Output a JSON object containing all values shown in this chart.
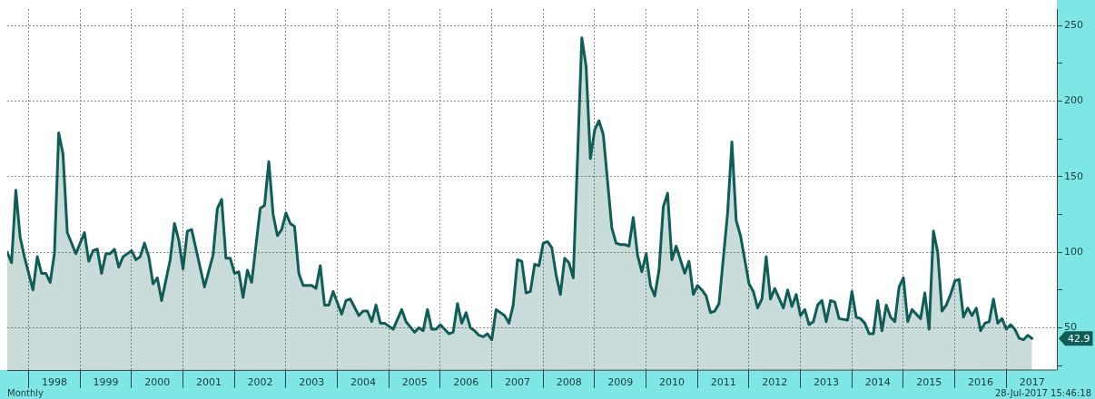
{
  "chart_data": {
    "type": "area",
    "xlim": [
      "1997-08-01",
      "2017-12-25"
    ],
    "ylim": [
      22,
      261
    ],
    "xticks": [
      {
        "value": "1998-01-01",
        "label": null
      },
      {
        "value": "1998-07-01",
        "label": "1998"
      },
      {
        "value": "1999-01-01",
        "label": null
      },
      {
        "value": "1999-07-01",
        "label": "1999"
      },
      {
        "value": "2000-01-01",
        "label": null
      },
      {
        "value": "2000-07-01",
        "label": "2000"
      },
      {
        "value": "2001-01-01",
        "label": null
      },
      {
        "value": "2001-07-01",
        "label": "2001"
      },
      {
        "value": "2002-01-01",
        "label": null
      },
      {
        "value": "2002-07-01",
        "label": "2002"
      },
      {
        "value": "2003-01-01",
        "label": null
      },
      {
        "value": "2003-07-01",
        "label": "2003"
      },
      {
        "value": "2004-01-01",
        "label": null
      },
      {
        "value": "2004-07-01",
        "label": "2004"
      },
      {
        "value": "2005-01-01",
        "label": null
      },
      {
        "value": "2005-07-01",
        "label": "2005"
      },
      {
        "value": "2006-01-01",
        "label": null
      },
      {
        "value": "2006-07-01",
        "label": "2006"
      },
      {
        "value": "2007-01-01",
        "label": null
      },
      {
        "value": "2007-07-01",
        "label": "2007"
      },
      {
        "value": "2008-01-01",
        "label": null
      },
      {
        "value": "2008-07-01",
        "label": "2008"
      },
      {
        "value": "2009-01-01",
        "label": null
      },
      {
        "value": "2009-07-01",
        "label": "2009"
      },
      {
        "value": "2010-01-01",
        "label": null
      },
      {
        "value": "2010-07-01",
        "label": "2010"
      },
      {
        "value": "2011-01-01",
        "label": null
      },
      {
        "value": "2011-07-01",
        "label": "2011"
      },
      {
        "value": "2012-01-01",
        "label": null
      },
      {
        "value": "2012-07-01",
        "label": "2012"
      },
      {
        "value": "2013-01-01",
        "label": null
      },
      {
        "value": "2013-07-01",
        "label": "2013"
      },
      {
        "value": "2014-01-01",
        "label": null
      },
      {
        "value": "2014-07-01",
        "label": "2014"
      },
      {
        "value": "2015-01-01",
        "label": null
      },
      {
        "value": "2015-07-01",
        "label": "2015"
      },
      {
        "value": "2016-01-01",
        "label": null
      },
      {
        "value": "2016-07-01",
        "label": "2016"
      },
      {
        "value": "2017-01-01",
        "label": null
      },
      {
        "value": "2017-07-01",
        "label": "2017"
      }
    ],
    "yticks": [
      {
        "value": 25,
        "label": null
      },
      50,
      {
        "value": 75,
        "label": null
      },
      100,
      {
        "value": 125,
        "label": null
      },
      150,
      {
        "value": 175,
        "label": null
      },
      200,
      {
        "value": 225,
        "label": null
      },
      250
    ],
    "grid": true,
    "legend": false,
    "marker": "none",
    "line_style": "solid",
    "series": [
      {
        "color": "#0e5e57",
        "x": [
          "1997-08",
          "1997-09",
          "1997-10",
          "1997-11",
          "1997-12",
          "1998-02",
          "1998-03",
          "1998-04",
          "1998-05",
          "1998-06",
          "1998-07",
          "1998-08",
          "1998-09",
          "1998-10",
          "1998-12",
          "1999-02",
          "1999-03",
          "1999-04",
          "1999-05",
          "1999-06",
          "1999-07",
          "1999-08",
          "1999-09",
          "1999-10",
          "1999-11",
          "2000-01",
          "2000-02",
          "2000-03",
          "2000-04",
          "2000-05",
          "2000-06",
          "2000-07",
          "2000-08",
          "2000-10",
          "2000-11",
          "2000-12",
          "2001-01",
          "2001-02",
          "2001-03",
          "2001-06",
          "2001-08",
          "2001-09",
          "2001-10",
          "2001-11",
          "2001-12",
          "2002-01",
          "2002-02",
          "2002-03",
          "2002-04",
          "2002-05",
          "2002-07",
          "2002-08",
          "2002-09",
          "2002-10",
          "2002-11",
          "2002-12",
          "2003-01",
          "2003-02",
          "2003-03",
          "2003-04",
          "2003-05",
          "2003-07",
          "2003-08",
          "2003-09",
          "2003-10",
          "2003-11",
          "2003-12",
          "2004-02",
          "2004-03",
          "2004-04",
          "2004-06",
          "2004-07",
          "2004-08",
          "2004-09",
          "2004-10",
          "2004-11",
          "2004-12",
          "2005-02",
          "2005-04",
          "2005-05",
          "2005-07",
          "2005-08",
          "2005-09",
          "2005-10",
          "2005-11",
          "2005-12",
          "2006-01",
          "2006-03",
          "2006-04",
          "2006-05",
          "2006-06",
          "2006-07",
          "2006-08",
          "2006-09",
          "2006-10",
          "2006-11",
          "2006-12",
          "2007-01",
          "2007-02",
          "2007-04",
          "2007-05",
          "2007-06",
          "2007-07",
          "2007-08",
          "2007-09",
          "2007-10",
          "2007-11",
          "2007-12",
          "2008-01",
          "2008-02",
          "2008-03",
          "2008-04",
          "2008-05",
          "2008-06",
          "2008-07",
          "2008-08",
          "2008-10",
          "2008-11",
          "2008-12",
          "2009-01",
          "2009-02",
          "2009-03",
          "2009-05",
          "2009-06",
          "2009-07",
          "2009-08",
          "2009-09",
          "2009-10",
          "2009-11",
          "2009-12",
          "2010-01",
          "2010-02",
          "2010-03",
          "2010-04",
          "2010-05",
          "2010-06",
          "2010-07",
          "2010-08",
          "2010-09",
          "2010-10",
          "2010-11",
          "2010-12",
          "2011-01",
          "2011-02",
          "2011-03",
          "2011-04",
          "2011-05",
          "2011-06",
          "2011-08",
          "2011-09",
          "2011-10",
          "2011-11",
          "2012-01",
          "2012-02",
          "2012-03",
          "2012-04",
          "2012-05",
          "2012-06",
          "2012-07",
          "2012-09",
          "2012-10",
          "2012-11",
          "2012-12",
          "2013-01",
          "2013-02",
          "2013-03",
          "2013-04",
          "2013-05",
          "2013-06",
          "2013-07",
          "2013-08",
          "2013-09",
          "2013-10",
          "2013-12",
          "2014-01",
          "2014-02",
          "2014-03",
          "2014-04",
          "2014-05",
          "2014-06",
          "2014-07",
          "2014-08",
          "2014-09",
          "2014-10",
          "2014-11",
          "2014-12",
          "2015-01",
          "2015-02",
          "2015-03",
          "2015-04",
          "2015-05",
          "2015-06",
          "2015-07",
          "2015-08",
          "2015-09",
          "2015-10",
          "2015-11",
          "2015-12",
          "2016-01",
          "2016-02",
          "2016-03",
          "2016-04",
          "2016-05",
          "2016-06",
          "2016-07",
          "2016-08",
          "2016-09",
          "2016-10",
          "2016-11",
          "2016-12",
          "2017-01",
          "2017-02",
          "2017-03",
          "2017-04",
          "2017-05",
          "2017-06",
          "2017-07"
        ],
        "values": [
          100,
          93,
          141,
          110,
          97,
          75,
          97,
          86,
          86,
          80,
          99,
          179,
          165,
          113,
          99,
          113,
          94,
          101,
          102,
          86,
          99,
          99,
          102,
          90,
          97,
          101,
          95,
          97,
          106,
          97,
          79,
          83,
          68,
          95,
          119,
          108,
          89,
          114,
          115,
          77,
          98,
          129,
          135,
          96,
          96,
          86,
          87,
          70,
          88,
          80,
          129,
          131,
          160,
          125,
          111,
          115,
          126,
          119,
          117,
          86,
          78,
          78,
          76,
          91,
          65,
          65,
          74,
          59,
          68,
          69,
          58,
          61,
          61,
          54,
          65,
          53,
          53,
          49,
          62,
          54,
          47,
          50,
          48,
          62,
          49,
          49,
          52,
          46,
          47,
          66,
          53,
          60,
          50,
          48,
          45,
          44,
          46,
          42,
          62,
          58,
          53,
          65,
          95,
          94,
          73,
          74,
          92,
          91,
          106,
          107,
          103,
          85,
          72,
          96,
          93,
          83,
          242,
          223,
          162,
          181,
          187,
          178,
          116,
          106,
          105,
          105,
          104,
          123,
          98,
          87,
          99,
          78,
          71,
          88,
          130,
          139,
          95,
          104,
          95,
          86,
          94,
          72,
          78,
          75,
          71,
          60,
          61,
          66,
          126,
          173,
          121,
          111,
          79,
          74,
          63,
          69,
          97,
          69,
          76,
          63,
          75,
          64,
          72,
          58,
          62,
          52,
          54,
          65,
          68,
          54,
          68,
          67,
          56,
          55,
          74,
          57,
          56,
          53,
          46,
          46,
          68,
          48,
          65,
          57,
          54,
          77,
          83,
          54,
          62,
          59,
          56,
          73,
          49,
          114,
          100,
          61,
          65,
          72,
          81,
          82,
          57,
          63,
          58,
          63,
          48,
          53,
          54,
          69,
          53,
          56,
          49,
          52,
          49,
          43,
          42,
          45,
          42.9
        ]
      }
    ],
    "annotations": [
      "42.9",
      "Monthly",
      "28-Jul-2017 15:46:18"
    ]
  }
}
